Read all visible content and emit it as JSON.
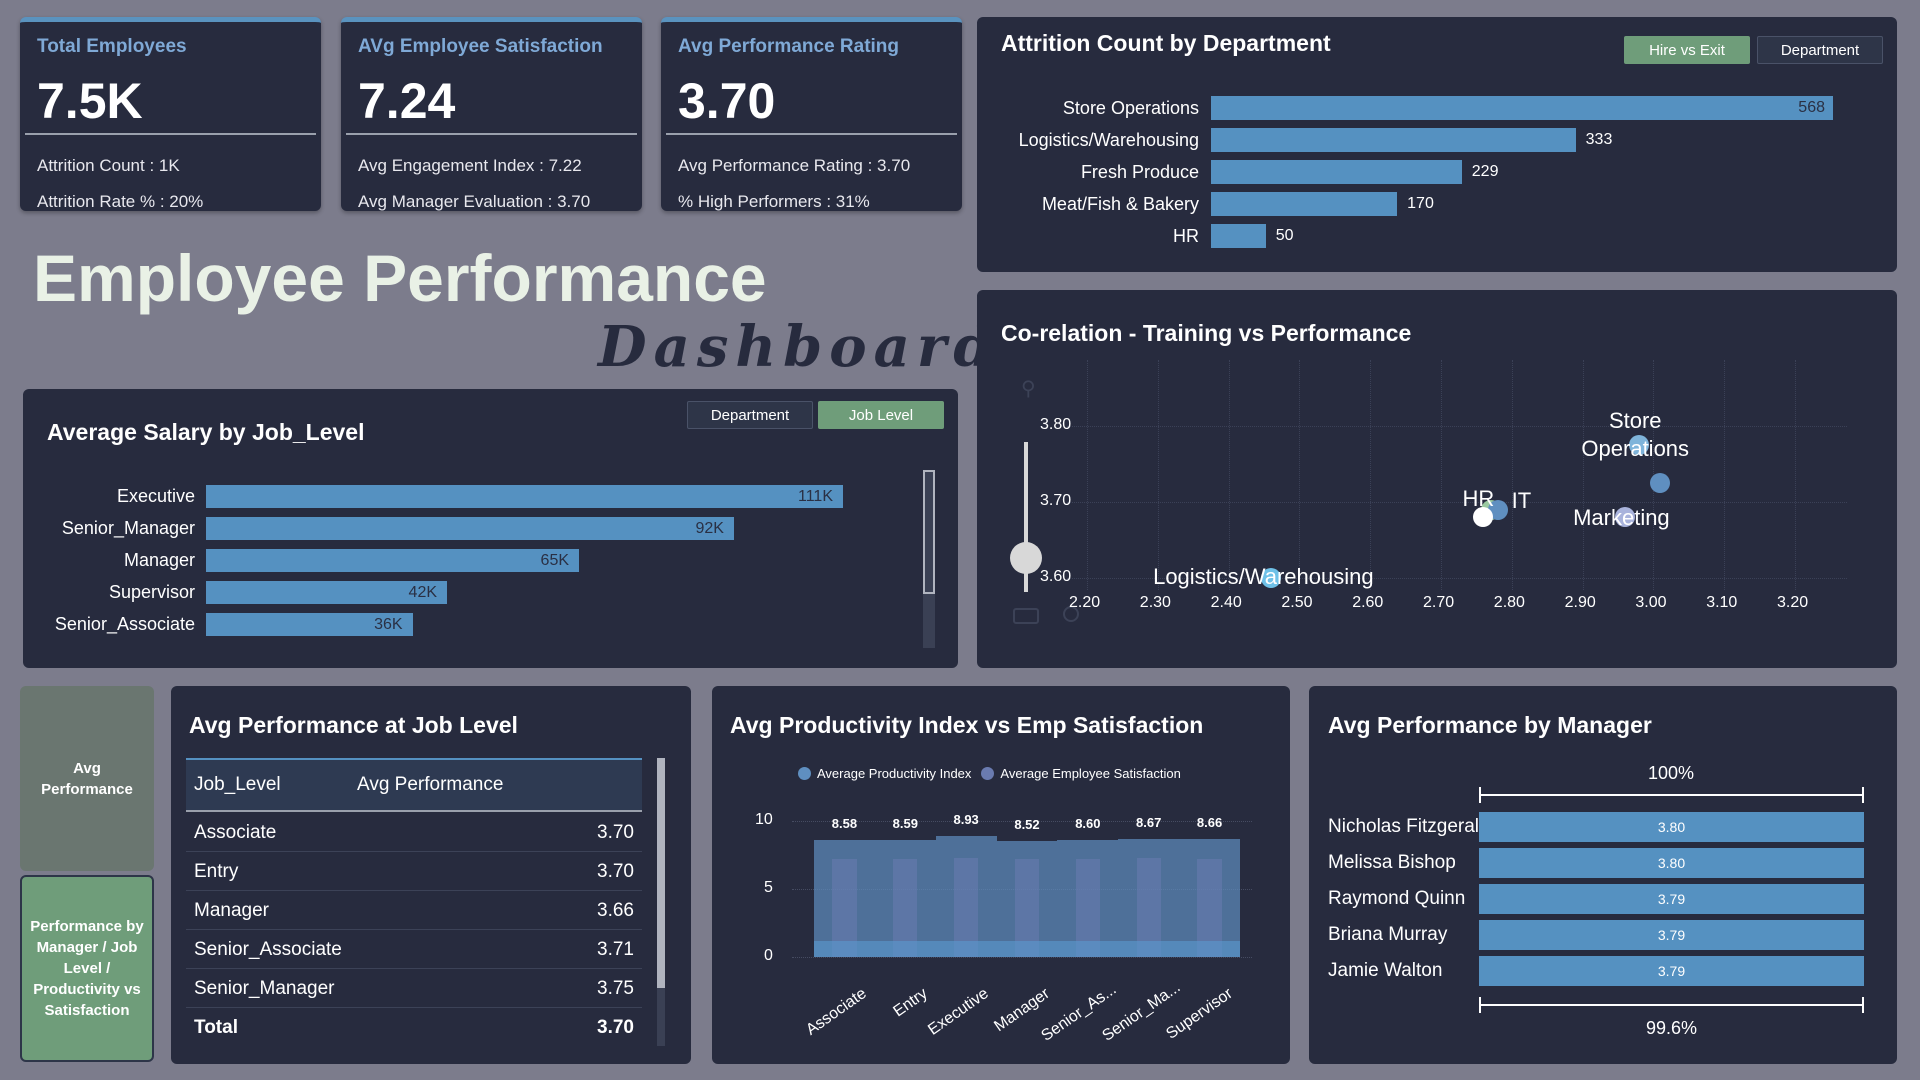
{
  "kpis": [
    {
      "title": "Total Employees",
      "value": "7.5K",
      "line1": "Attrition Count : 1K",
      "line2": "Attrition Rate % : 20%"
    },
    {
      "title": "AVg Employee Satisfaction",
      "value": "7.24",
      "line1": "Avg Engagement Index : 7.22",
      "line2": "Avg Manager Evaluation : 3.70"
    },
    {
      "title": "Avg Performance Rating",
      "value": "3.70",
      "line1": "Avg Performance Rating : 3.70",
      "line2": "% High Performers : 31%"
    }
  ],
  "dashboard": {
    "title_line1": "Employee Performance",
    "title_line2": "Dashboard"
  },
  "attrition": {
    "title": "Attrition Count by Department",
    "toggle": [
      "Hire vs Exit",
      "Department"
    ],
    "chart_data": {
      "type": "bar",
      "categories": [
        "Store Operations",
        "Logistics/Warehousing",
        "Fresh Produce",
        "Meat/Fish & Bakery",
        "HR"
      ],
      "values": [
        568,
        333,
        229,
        170,
        50
      ],
      "labels": [
        "568",
        "333",
        "229",
        "170",
        "50"
      ],
      "title": "Attrition Count by Department"
    }
  },
  "salary": {
    "title": "Average Salary by Job_Level",
    "toggle": [
      "Department",
      "Job Level"
    ],
    "chart_data": {
      "type": "bar",
      "categories": [
        "Executive",
        "Senior_Manager",
        "Manager",
        "Supervisor",
        "Senior_Associate"
      ],
      "values": [
        111000,
        92000,
        65000,
        42000,
        36000
      ],
      "labels": [
        "111K",
        "92K",
        "65K",
        "42K",
        "36K"
      ],
      "title": "Average Salary by Job_Level"
    }
  },
  "correlation": {
    "title": "Co-relation - Training vs Performance",
    "chart_data": {
      "type": "scatter",
      "title": "Co-relation - Training vs Performance",
      "xlim": [
        2.2,
        3.2
      ],
      "ylim": [
        3.6,
        3.8
      ],
      "xticks": [
        "2.20",
        "2.30",
        "2.40",
        "2.50",
        "2.60",
        "2.70",
        "2.80",
        "2.90",
        "3.00",
        "3.10",
        "3.20"
      ],
      "yticks": [
        "3.80",
        "3.70",
        "3.60"
      ],
      "points": [
        {
          "label": "Store Operations",
          "x": 2.98,
          "y": 3.775,
          "color": "#7fb4da"
        },
        {
          "label": "",
          "x": 3.01,
          "y": 3.725,
          "color": "#5f8fc0"
        },
        {
          "label": "HR",
          "x": 2.77,
          "y": 3.69,
          "color": "#9ac9a0"
        },
        {
          "label": "IT",
          "x": 2.78,
          "y": 3.69,
          "color": "#5f8fc0"
        },
        {
          "label": "",
          "x": 2.76,
          "y": 3.68,
          "color": "#ffffff"
        },
        {
          "label": "Marketing",
          "x": 2.96,
          "y": 3.68,
          "color": "#a9b3dc"
        },
        {
          "label": "Logistics/Warehousing",
          "x": 2.46,
          "y": 3.6,
          "color": "#6fc1e8"
        }
      ]
    }
  },
  "nav": {
    "avg_performance": "Avg Performance",
    "perf_by": "Performance by Manager / Job Level / Productivity vs Satisfaction"
  },
  "job_table": {
    "title": "Avg Performance at Job Level",
    "headers": [
      "Job_Level",
      "Avg Performance"
    ],
    "rows": [
      {
        "level": "Associate",
        "value": "3.70"
      },
      {
        "level": "Entry",
        "value": "3.70"
      },
      {
        "level": "Manager",
        "value": "3.66"
      },
      {
        "level": "Senior_Associate",
        "value": "3.71"
      },
      {
        "level": "Senior_Manager",
        "value": "3.75"
      }
    ],
    "total_label": "Total",
    "total_value": "3.70"
  },
  "productivity": {
    "title": "Avg Productivity Index vs Emp Satisfaction",
    "chart_data": {
      "type": "area",
      "title": "Avg Productivity Index vs Emp Satisfaction",
      "categories": [
        "Associate",
        "Entry",
        "Executive",
        "Manager",
        "Senior_As...",
        "Senior_Ma...",
        "Supervisor"
      ],
      "ylim": [
        0,
        10
      ],
      "yticks": [
        "10",
        "5",
        "0"
      ],
      "series": [
        {
          "name": "Average Productivity Index",
          "values": [
            8.58,
            8.59,
            8.93,
            8.52,
            8.6,
            8.67,
            8.66
          ],
          "color": "#5f8fc0"
        },
        {
          "name": "Average Employee Satisfaction",
          "values": [
            7.2,
            7.2,
            7.3,
            7.2,
            7.2,
            7.3,
            7.2
          ],
          "color": "#6a7bb0"
        }
      ],
      "labels": [
        "8.58",
        "8.59",
        "8.93",
        "8.52",
        "8.60",
        "8.67",
        "8.66"
      ]
    }
  },
  "manager": {
    "title": "Avg Performance by Manager",
    "top_label": "100%",
    "bottom_label": "99.6%",
    "rows": [
      {
        "name": "Nicholas Fitzgerald",
        "value": "3.80"
      },
      {
        "name": "Melissa Bishop",
        "value": "3.80"
      },
      {
        "name": "Raymond Quinn",
        "value": "3.79"
      },
      {
        "name": "Briana Murray",
        "value": "3.79"
      },
      {
        "name": "Jamie Walton",
        "value": "3.79"
      }
    ]
  },
  "colors": {
    "bar": "#5591c1",
    "panel": "#272b3e",
    "background": "#7c7c8c",
    "accent_green": "#6f9d7a"
  }
}
